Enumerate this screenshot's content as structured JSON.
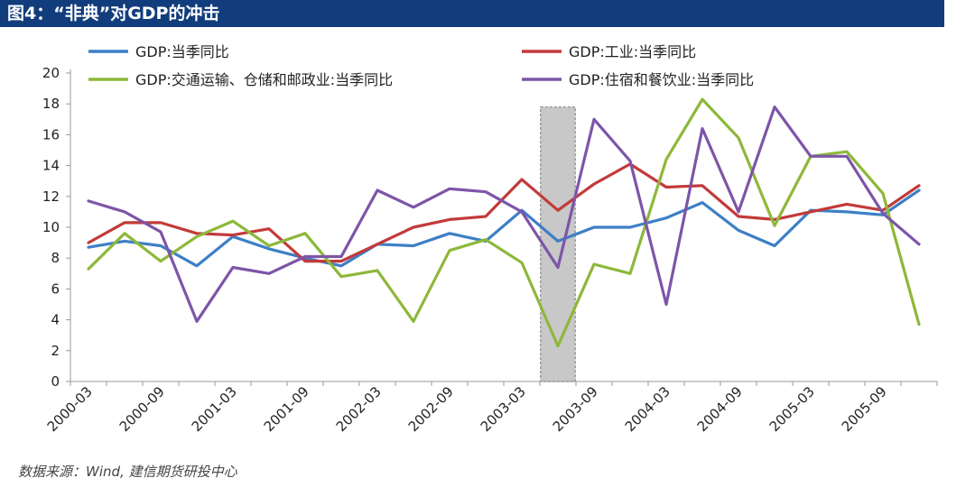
{
  "title": "图4：“非典”对GDP的冲击",
  "source": "数据来源：Wind, 建信期货研投中心",
  "chart_data": {
    "type": "line",
    "title": "图4：“非典”对GDP的冲击",
    "xlabel": "",
    "ylabel": "",
    "ylim": [
      0,
      20
    ],
    "yticks": [
      0,
      2,
      4,
      6,
      8,
      10,
      12,
      14,
      16,
      18,
      20
    ],
    "x": [
      "2000-03",
      "2000-06",
      "2000-09",
      "2000-12",
      "2001-03",
      "2001-06",
      "2001-09",
      "2001-12",
      "2002-03",
      "2002-06",
      "2002-09",
      "2002-12",
      "2003-03",
      "2003-06",
      "2003-09",
      "2003-12",
      "2004-03",
      "2004-06",
      "2004-09",
      "2004-12",
      "2005-03",
      "2005-06",
      "2005-09",
      "2005-12"
    ],
    "xtick_labels": [
      "2000-03",
      "2000-09",
      "2001-03",
      "2001-09",
      "2002-03",
      "2002-09",
      "2003-03",
      "2003-09",
      "2004-03",
      "2004-09",
      "2005-03",
      "2005-09"
    ],
    "highlight": {
      "from": "2003-06",
      "color": "#c8c8c8"
    },
    "grid": false,
    "legend_position": "top",
    "series": [
      {
        "name": "GDP:当季同比",
        "color": "#3d7fc6",
        "values": [
          8.7,
          9.1,
          8.8,
          7.5,
          9.4,
          8.6,
          8.0,
          7.5,
          8.9,
          8.8,
          9.6,
          9.1,
          11.1,
          9.1,
          10.0,
          10.0,
          10.6,
          11.6,
          9.8,
          8.8,
          11.1,
          11.0,
          10.8,
          12.4
        ]
      },
      {
        "name": "GDP:工业:当季同比",
        "color": "#c33a3a",
        "values": [
          9.0,
          10.3,
          10.3,
          9.6,
          9.5,
          9.9,
          7.8,
          7.8,
          8.9,
          10.0,
          10.5,
          10.7,
          13.1,
          11.1,
          12.8,
          14.1,
          12.6,
          12.7,
          10.7,
          10.5,
          11.0,
          11.5,
          11.1,
          12.7
        ]
      },
      {
        "name": "GDP:交通运输、仓储和邮政业:当季同比",
        "color": "#8db83a",
        "values": [
          7.3,
          9.6,
          7.8,
          9.4,
          10.4,
          8.8,
          9.6,
          6.8,
          7.2,
          3.9,
          8.5,
          9.2,
          7.7,
          2.3,
          7.6,
          7.0,
          14.4,
          18.3,
          15.8,
          10.1,
          14.6,
          14.9,
          12.2,
          3.7
        ]
      },
      {
        "name": "GDP:住宿和餐饮业:当季同比",
        "color": "#7d55a8",
        "values": [
          11.7,
          11.0,
          9.7,
          3.9,
          7.4,
          7.0,
          8.1,
          8.1,
          12.4,
          11.3,
          12.5,
          12.3,
          11.0,
          7.4,
          17.0,
          14.3,
          5.0,
          16.4,
          11.0,
          17.8,
          14.6,
          14.6,
          10.9,
          8.9
        ]
      }
    ]
  }
}
